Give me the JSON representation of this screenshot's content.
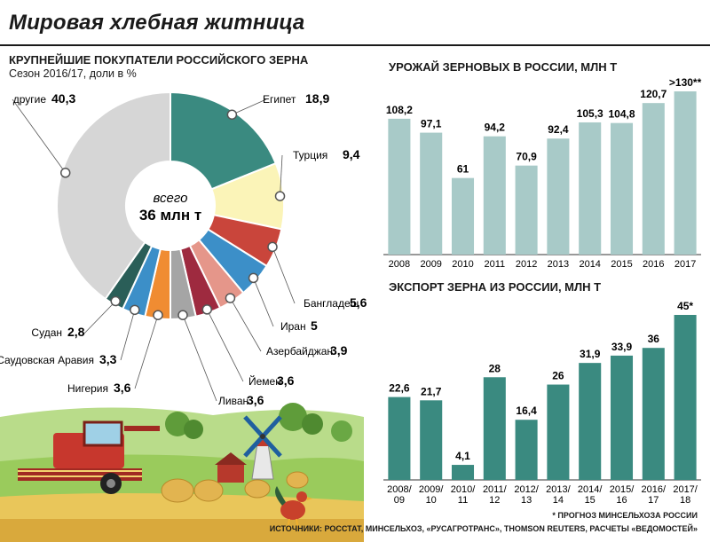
{
  "title": "Мировая хлебная житница",
  "pie": {
    "heading": "КРУПНЕЙШИЕ ПОКУПАТЕЛИ РОССИЙСКОГО ЗЕРНА",
    "subheading": "Сезон 2016/17, доли в %",
    "center_line1": "всего",
    "center_line2": "36 млн т"
  },
  "harvest": {
    "heading": "УРОЖАЙ ЗЕРНОВЫХ В РОССИИ, МЛН Т"
  },
  "export": {
    "heading": "ЭКСПОРТ ЗЕРНА ИЗ РОССИИ, МЛН Т"
  },
  "footnote": "* ПРОГНОЗ МИНСЕЛЬХОЗА РОССИИ",
  "sources": "ИСТОЧНИКИ: РОССТАТ, МИНСЕЛЬХОЗ, «РУСАГРОТРАНС», THOMSON REUTERS, РАСЧЕТЫ «ВЕДОМОСТЕЙ»",
  "chart_data": [
    {
      "type": "pie",
      "title": "КРУПНЕЙШИЕ ПОКУПАТЕЛИ РОССИЙСКОГО ЗЕРНА",
      "slices": [
        {
          "label": "Египет",
          "value": 18.9,
          "display": "18,9",
          "color": "#3a8a80"
        },
        {
          "label": "Турция",
          "value": 9.4,
          "display": "9,4",
          "color": "#fbf4b8"
        },
        {
          "label": "Бангладеш",
          "value": 5.6,
          "display": "5,6",
          "color": "#c9453b"
        },
        {
          "label": "Иран",
          "value": 5,
          "display": "5",
          "color": "#3c8fc8"
        },
        {
          "label": "Азербайджан",
          "value": 3.9,
          "display": "3,9",
          "color": "#e5968a"
        },
        {
          "label": "Йемен",
          "value": 3.6,
          "display": "3,6",
          "color": "#9e2a3f"
        },
        {
          "label": "Ливан",
          "value": 3.6,
          "display": "3,6",
          "color": "#a5a5a5"
        },
        {
          "label": "Нигерия",
          "value": 3.6,
          "display": "3,6",
          "color": "#f08c32"
        },
        {
          "label": "Саудовская Аравия",
          "value": 3.3,
          "display": "3,3",
          "color": "#3c8fc8"
        },
        {
          "label": "Судан",
          "value": 2.8,
          "display": "2,8",
          "color": "#2a5e58"
        },
        {
          "label": "другие",
          "value": 40.3,
          "display": "40,3",
          "color": "#d6d6d6"
        }
      ]
    },
    {
      "type": "bar",
      "title": "УРОЖАЙ ЗЕРНОВЫХ В РОССИИ, МЛН Т",
      "categories": [
        "2008",
        "2009",
        "2010",
        "2011",
        "2012",
        "2013",
        "2014",
        "2015",
        "2016",
        "2017"
      ],
      "values": [
        108.2,
        97.1,
        61,
        94.2,
        70.9,
        92.4,
        105.3,
        104.8,
        120.7,
        130
      ],
      "labels": [
        "108,2",
        "97,1",
        "61",
        "94,2",
        "70,9",
        "92,4",
        "105,3",
        "104,8",
        "120,7",
        ">130**"
      ],
      "color": "#a8cac8",
      "ylim": [
        0,
        130
      ]
    },
    {
      "type": "bar",
      "title": "ЭКСПОРТ ЗЕРНА ИЗ РОССИИ, МЛН Т",
      "categories": [
        "2008/\n09",
        "2009/\n10",
        "2010/\n11",
        "2011/\n12",
        "2012/\n13",
        "2013/\n14",
        "2014/\n15",
        "2015/\n16",
        "2016/\n17",
        "2017/\n18"
      ],
      "values": [
        22.6,
        21.7,
        4.1,
        28,
        16.4,
        26,
        31.9,
        33.9,
        36,
        45
      ],
      "labels": [
        "22,6",
        "21,7",
        "4,1",
        "28",
        "16,4",
        "26",
        "31,9",
        "33,9",
        "36",
        "45*"
      ],
      "color": "#3a8a80",
      "ylim": [
        0,
        45
      ]
    }
  ]
}
